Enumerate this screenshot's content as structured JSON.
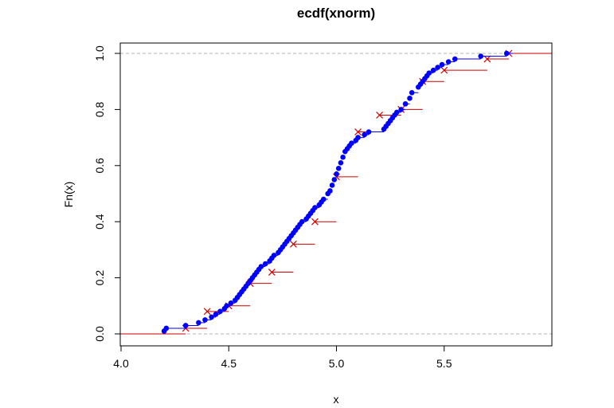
{
  "chart_data": {
    "type": "line",
    "title": "ecdf(xnorm)",
    "xlabel": "x",
    "ylabel": "Fn(x)",
    "xlim": [
      4.0,
      6.0
    ],
    "ylim": [
      0.0,
      1.0
    ],
    "x_ticks": [
      4.0,
      4.5,
      5.0,
      5.5
    ],
    "x_tick_labels": [
      "4.0",
      "4.5",
      "5.0",
      "5.5"
    ],
    "y_ticks": [
      0.0,
      0.2,
      0.4,
      0.6,
      0.8,
      1.0
    ],
    "y_tick_labels": [
      "0.0",
      "0.2",
      "0.4",
      "0.6",
      "0.8",
      "1.0"
    ],
    "grid": false,
    "reference_lines": [
      0.0,
      1.0
    ],
    "colors": {
      "fine_series": "#0000ff",
      "coarse_series": "#cc0000",
      "reference_line": "#b0b0b0"
    },
    "series": [
      {
        "marker": "dot",
        "x": [
          4.2,
          4.21,
          4.3,
          4.36,
          4.39,
          4.42,
          4.44,
          4.46,
          4.48,
          4.49,
          4.51,
          4.53,
          4.54,
          4.55,
          4.56,
          4.57,
          4.58,
          4.59,
          4.6,
          4.61,
          4.62,
          4.63,
          4.64,
          4.65,
          4.67,
          4.69,
          4.7,
          4.71,
          4.73,
          4.74,
          4.75,
          4.76,
          4.77,
          4.78,
          4.79,
          4.8,
          4.81,
          4.82,
          4.83,
          4.84,
          4.86,
          4.87,
          4.88,
          4.89,
          4.9,
          4.92,
          4.93,
          4.94,
          4.96,
          4.97,
          4.98,
          4.99,
          5.0,
          5.01,
          5.02,
          5.03,
          5.04,
          5.05,
          5.06,
          5.07,
          5.09,
          5.1,
          5.13,
          5.15,
          5.22,
          5.23,
          5.24,
          5.25,
          5.26,
          5.27,
          5.28,
          5.3,
          5.32,
          5.34,
          5.35,
          5.38,
          5.39,
          5.4,
          5.41,
          5.42,
          5.43,
          5.45,
          5.47,
          5.49,
          5.52,
          5.55,
          5.67,
          5.79
        ],
        "y": [
          0.01,
          0.02,
          0.03,
          0.04,
          0.05,
          0.06,
          0.07,
          0.08,
          0.09,
          0.1,
          0.11,
          0.12,
          0.13,
          0.14,
          0.15,
          0.16,
          0.17,
          0.18,
          0.19,
          0.2,
          0.21,
          0.22,
          0.23,
          0.24,
          0.25,
          0.26,
          0.27,
          0.28,
          0.29,
          0.3,
          0.31,
          0.32,
          0.33,
          0.34,
          0.35,
          0.36,
          0.37,
          0.38,
          0.39,
          0.4,
          0.41,
          0.42,
          0.43,
          0.44,
          0.45,
          0.46,
          0.47,
          0.48,
          0.5,
          0.51,
          0.53,
          0.55,
          0.57,
          0.59,
          0.61,
          0.63,
          0.65,
          0.66,
          0.67,
          0.68,
          0.69,
          0.7,
          0.71,
          0.72,
          0.73,
          0.74,
          0.75,
          0.76,
          0.77,
          0.78,
          0.79,
          0.8,
          0.82,
          0.84,
          0.86,
          0.88,
          0.89,
          0.9,
          0.91,
          0.92,
          0.93,
          0.94,
          0.95,
          0.96,
          0.97,
          0.98,
          0.99,
          1.0
        ]
      },
      {
        "marker": "cross",
        "x": [
          4.3,
          4.4,
          4.5,
          4.6,
          4.7,
          4.8,
          4.9,
          5.0,
          5.1,
          5.2,
          5.3,
          5.4,
          5.5,
          5.7,
          5.8
        ],
        "y": [
          0.02,
          0.08,
          0.1,
          0.18,
          0.22,
          0.32,
          0.4,
          0.56,
          0.72,
          0.78,
          0.8,
          0.9,
          0.94,
          0.98,
          1.0
        ]
      }
    ]
  }
}
